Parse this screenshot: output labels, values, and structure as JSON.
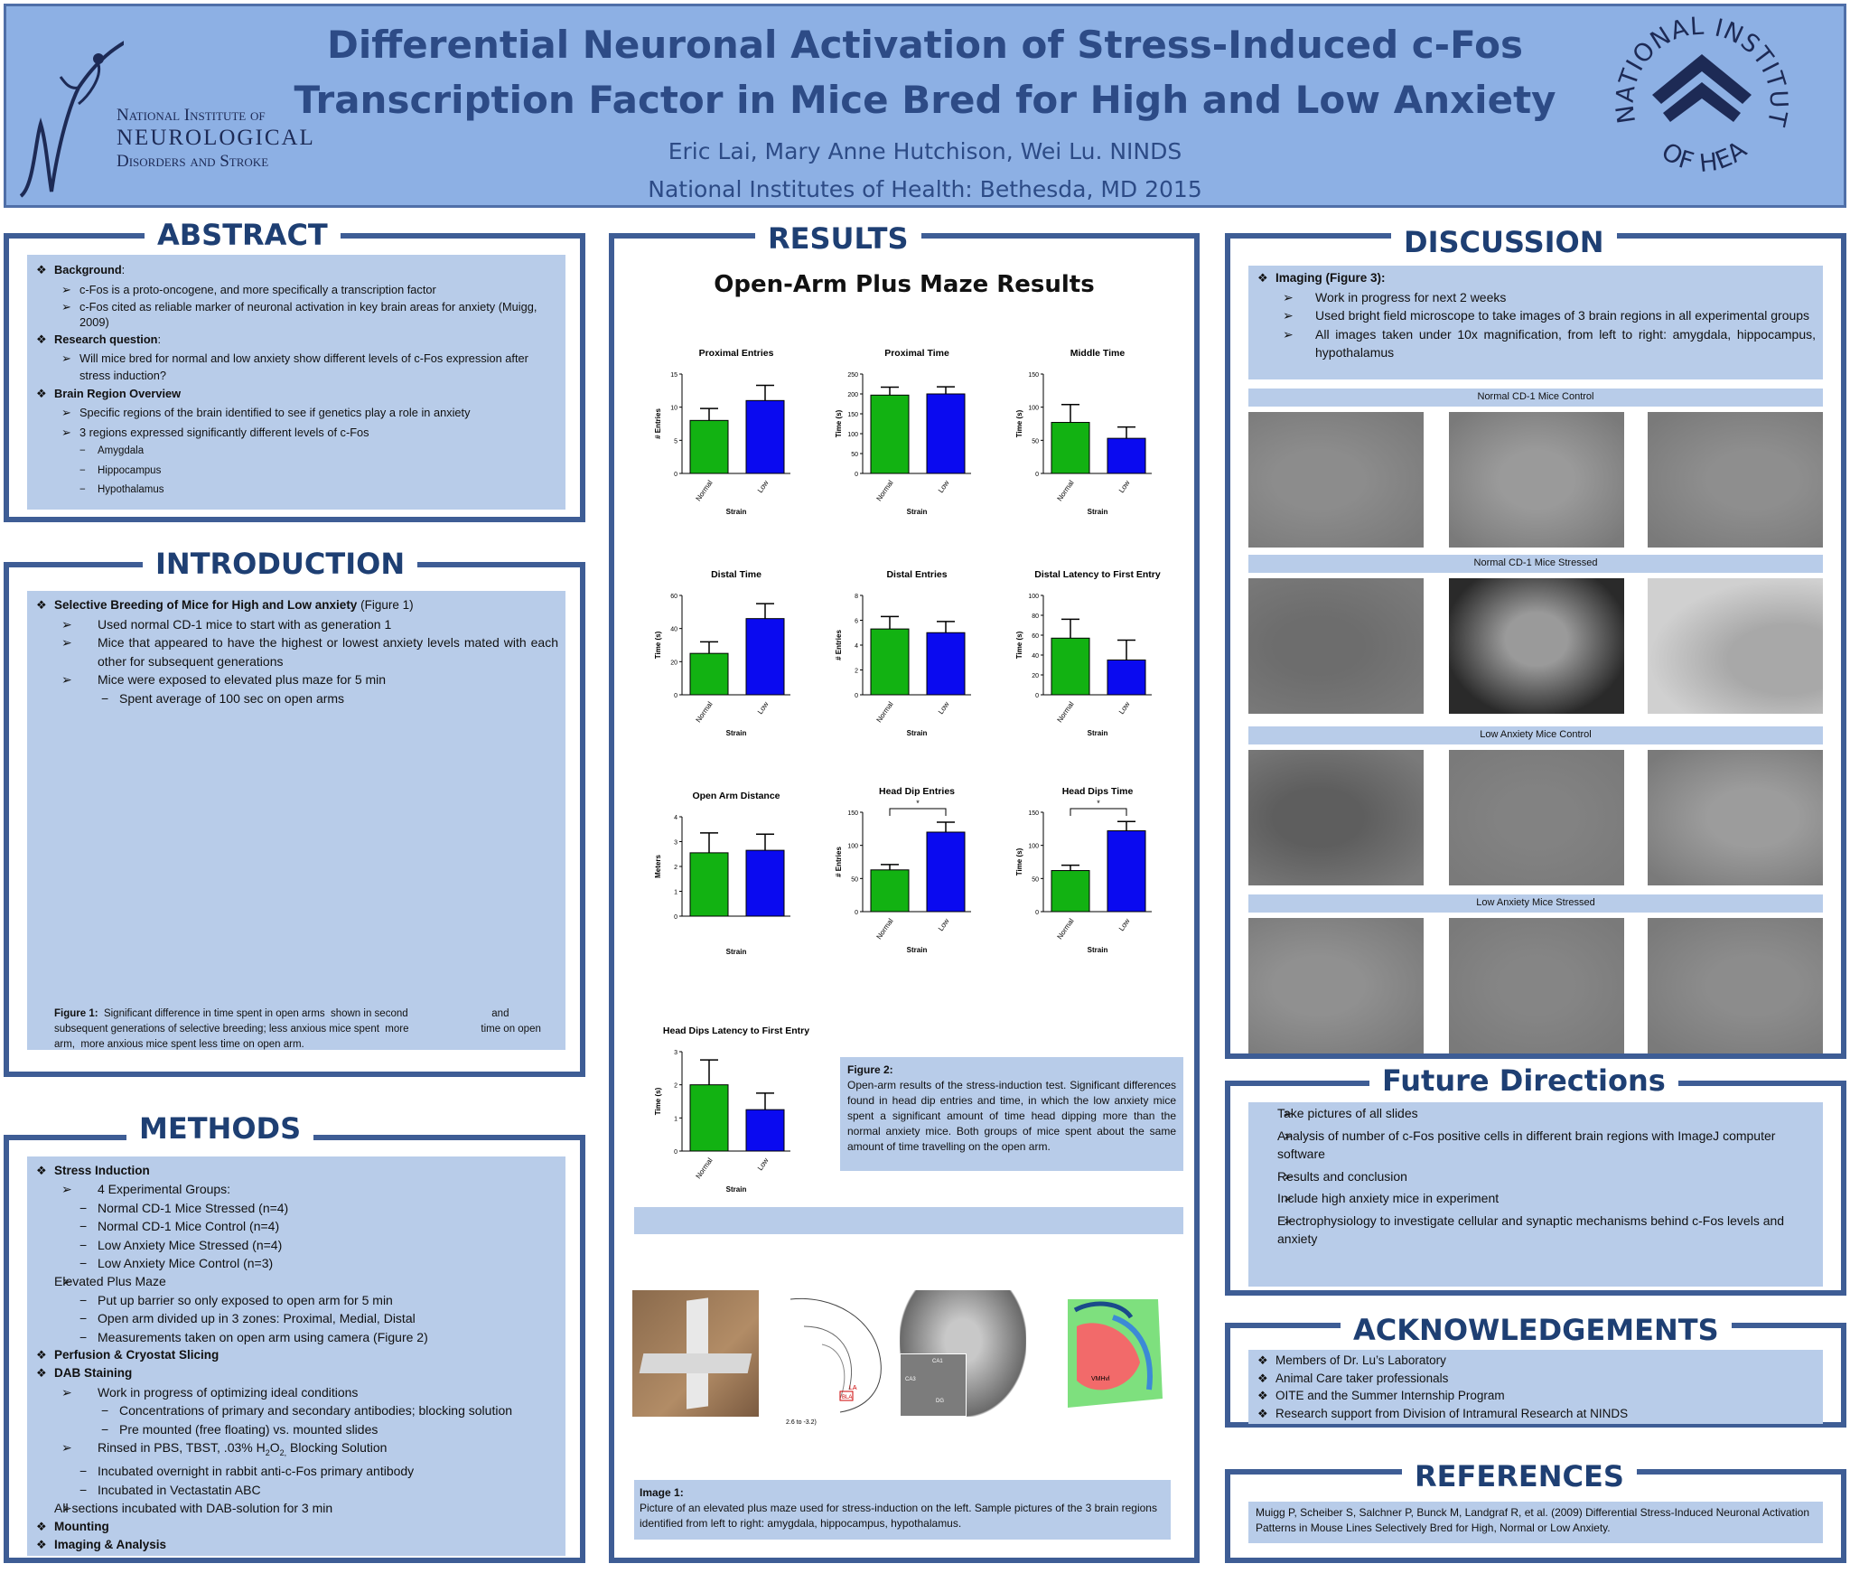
{
  "header": {
    "title_line1": "Differential Neuronal Activation of Stress-Induced c-Fos",
    "title_line2": "Transcription Factor in Mice Bred for High and Low Anxiety",
    "authors": "Eric Lai, Mary Anne Hutchison, Wei Lu. NINDS",
    "affiliation": "National Institutes of Health: Bethesda, MD 2015",
    "ninds_line1": "National Institute of",
    "ninds_line2": "NEUROLOGICAL",
    "ninds_line3": "Disorders and Stroke",
    "nih_seal_text": "NATIONAL INSTITUTES OF HEALTH"
  },
  "abstract": {
    "title": "ABSTRACT",
    "background_label": "Background",
    "bg_1": "c-Fos  is a proto-oncogene, and more specifically a transcription factor",
    "bg_2": "c-Fos cited as reliable marker of neuronal activation in key brain areas for anxiety (Muigg, 2009)",
    "rq_label": "Research question",
    "rq_1": "Will mice bred for normal and low anxiety show different levels of c-Fos expression after stress induction?",
    "br_label": "Brain Region Overview",
    "br_1": "Specific regions of the brain identified to see if genetics play a role in anxiety",
    "br_2": "3 regions expressed significantly different levels of c-Fos",
    "br_r1": "Amygdala",
    "br_r2": "Hippocampus",
    "br_r3": "Hypothalamus"
  },
  "introduction": {
    "title": "INTRODUCTION",
    "h1": "Selective Breeding of Mice for High and Low anxiety",
    "h1_ref": " (Figure 1)",
    "i1": "Used normal CD-1 mice to start with  as generation 1",
    "i2": "Mice that appeared to have the highest or lowest anxiety levels mated with each other for subsequent generations",
    "i3": "Mice were exposed to elevated plus maze for 5 min",
    "i4": "Spent average of 100 sec on open arms",
    "fig_label": "Figure 1:",
    "fig_text": "  Significant difference in time spent in open arms  shown in second                             and subsequent generations of selective breeding; less anxious mice spent  more                         time on open arm,  more anxious mice spent less time on open arm."
  },
  "methods": {
    "title": "METHODS",
    "m1": "Stress Induction",
    "m1a": "4 Experimental Groups:",
    "m1a1": "Normal CD-1 Mice Stressed (n=4)",
    "m1a2": "Normal CD-1 Mice Control (n=4)",
    "m1a3": "Low Anxiety Mice Stressed (n=4)",
    "m1a4": "Low Anxiety Mice Control (n=3)",
    "m2": "Elevated Plus Maze",
    "m2a": "Put up barrier so only exposed to open arm for 5 min",
    "m2b": "Open arm divided up in 3 zones: Proximal, Medial, Distal",
    "m2c": "Measurements taken on open arm using camera (Figure 2)",
    "m3": "Perfusion & Cryostat Slicing",
    "m4": "DAB Staining",
    "m4a": "Work in progress of optimizing ideal conditions",
    "m4a1": "Concentrations of primary and secondary antibodies; blocking solution",
    "m4a2": "Pre mounted (free floating) vs. mounted slides",
    "m4b_pre": "Rinsed in PBS, TBST, .03% H",
    "m4b_sub1": "2",
    "m4b_mid": "O",
    "m4b_sub2": "2,",
    "m4b_post": " Blocking Solution",
    "m4c": "Incubated overnight in rabbit anti-c-Fos primary antibody",
    "m4d": "Incubated in Vectastatin ABC",
    "m5": "All sections incubated with DAB-solution for 3 min",
    "m6": "Mounting",
    "m7": "Imaging & Analysis"
  },
  "results": {
    "title": "RESULTS",
    "subtitle": "Open-Arm Plus Maze Results",
    "fig2_label": "Figure 2:",
    "fig2_text": "Open-arm results of the stress-induction test. Significant differences found in head dip entries and time, in which the low anxiety mice spent a significant amount of time head dipping more than the normal anxiety mice. Both groups of mice spent about the same amount of time travelling on the open arm.",
    "image1_label": "Image 1:",
    "image1_text": "Picture of an elevated plus maze used for stress-induction on the left. Sample pictures of the 3 brain regions identified  from left to right: amygdala, hippocampus,  hypothalamus.",
    "atlas_range": "2.6 to -3.2)",
    "atlas_la": "LA",
    "atlas_bla": "BLA",
    "atlas_vmh": "VMHvl",
    "ca1": "CA1",
    "ca3": "CA3",
    "dg": "DG"
  },
  "chart_data": [
    {
      "type": "bar",
      "title": "Proximal Entries",
      "categories": [
        "Normal",
        "Low"
      ],
      "values": [
        8,
        11
      ],
      "errors": [
        1.8,
        2.3
      ],
      "xlabel": "Strain",
      "ylabel": "# Entries",
      "ylim": [
        0,
        15
      ],
      "yticks": [
        0,
        5,
        10,
        15
      ],
      "colors": [
        "#12b212",
        "#0a0af0"
      ]
    },
    {
      "type": "bar",
      "title": "Proximal Time",
      "categories": [
        "Normal",
        "Low"
      ],
      "values": [
        197,
        200
      ],
      "errors": [
        20,
        18
      ],
      "xlabel": "Strain",
      "ylabel": "Time (s)",
      "ylim": [
        0,
        250
      ],
      "yticks": [
        0,
        50,
        100,
        150,
        200,
        250
      ],
      "colors": [
        "#12b212",
        "#0a0af0"
      ]
    },
    {
      "type": "bar",
      "title": "Middle Time",
      "categories": [
        "Normal",
        "Low"
      ],
      "values": [
        77,
        53
      ],
      "errors": [
        27,
        17
      ],
      "xlabel": "Strain",
      "ylabel": "Time (s)",
      "ylim": [
        0,
        150
      ],
      "yticks": [
        0,
        50,
        100,
        150
      ],
      "colors": [
        "#12b212",
        "#0a0af0"
      ]
    },
    {
      "type": "bar",
      "title": "Distal Time",
      "categories": [
        "Normal",
        "Low"
      ],
      "values": [
        25,
        46
      ],
      "errors": [
        7,
        9
      ],
      "xlabel": "Strain",
      "ylabel": "Time (s)",
      "ylim": [
        0,
        60
      ],
      "yticks": [
        0,
        20,
        40,
        60
      ],
      "colors": [
        "#12b212",
        "#0a0af0"
      ]
    },
    {
      "type": "bar",
      "title": "Distal Entries",
      "categories": [
        "Normal",
        "Low"
      ],
      "values": [
        5.3,
        5
      ],
      "errors": [
        1,
        0.9
      ],
      "xlabel": "Strain",
      "ylabel": "# Entries",
      "ylim": [
        0,
        8
      ],
      "yticks": [
        0,
        2,
        4,
        6,
        8
      ],
      "colors": [
        "#12b212",
        "#0a0af0"
      ]
    },
    {
      "type": "bar",
      "title": "Distal Latency to First Entry",
      "categories": [
        "Normal",
        "Low"
      ],
      "values": [
        57,
        35
      ],
      "errors": [
        19,
        20
      ],
      "xlabel": "Strain",
      "ylabel": "Time (s)",
      "ylim": [
        0,
        100
      ],
      "yticks": [
        0,
        20,
        40,
        60,
        80,
        100
      ],
      "colors": [
        "#12b212",
        "#0a0af0"
      ]
    },
    {
      "type": "bar",
      "title": "Open Arm Distance",
      "categories": [
        "Normal",
        "Low"
      ],
      "values": [
        2.55,
        2.65
      ],
      "errors": [
        0.8,
        0.65
      ],
      "xlabel": "Strain",
      "ylabel": "Meters",
      "ylim": [
        0,
        4
      ],
      "yticks": [
        0,
        1,
        2,
        3,
        4
      ],
      "colors": [
        "#12b212",
        "#0a0af0"
      ],
      "no_xticks": true
    },
    {
      "type": "bar",
      "title": "Head Dip Entries",
      "categories": [
        "Normal",
        "Low"
      ],
      "values": [
        63,
        120
      ],
      "errors": [
        8,
        15
      ],
      "xlabel": "Strain",
      "ylabel": "# Entries",
      "ylim": [
        0,
        150
      ],
      "yticks": [
        0,
        50,
        100,
        150
      ],
      "colors": [
        "#12b212",
        "#0a0af0"
      ],
      "annotation": "*"
    },
    {
      "type": "bar",
      "title": "Head Dips Time",
      "categories": [
        "Normal",
        "Low"
      ],
      "values": [
        62,
        122
      ],
      "errors": [
        8,
        14
      ],
      "xlabel": "Strain",
      "ylabel": "Time (s)",
      "ylim": [
        0,
        150
      ],
      "yticks": [
        0,
        50,
        100,
        150
      ],
      "colors": [
        "#12b212",
        "#0a0af0"
      ],
      "annotation": "*"
    },
    {
      "type": "bar",
      "title": "Head Dips Latency to First Entry",
      "categories": [
        "Normal",
        "Low"
      ],
      "values": [
        2,
        1.25
      ],
      "errors": [
        0.75,
        0.5
      ],
      "xlabel": "Strain",
      "ylabel": "Time (s)",
      "ylim": [
        0,
        3
      ],
      "yticks": [
        0,
        1,
        2,
        3
      ],
      "colors": [
        "#12b212",
        "#0a0af0"
      ]
    }
  ],
  "discussion": {
    "title": "DISCUSSION",
    "h1": "Imaging (Figure 3):",
    "d1": "Work in progress for next 2 weeks",
    "d2": "Used bright field microscope to take images  of 3 brain regions in all experimental groups",
    "d3": "All images taken under 10x magnification, from left to right: amygdala, hippocampus, hypothalamus",
    "g1": "Normal CD-1 Mice Control",
    "g2": "Normal CD-1 Mice  Stressed",
    "g3": "Low Anxiety Mice Control",
    "g4": "Low Anxiety Mice  Stressed"
  },
  "future": {
    "title": "Future Directions",
    "f1": "Take pictures of all slides",
    "f2": "Analysis of number of c-Fos positive cells in different brain regions with ImageJ computer software",
    "f3": "Results and conclusion",
    "f4": "Include high anxiety mice in experiment",
    "f5": "Electrophysiology to investigate cellular and synaptic mechanisms behind  c-Fos levels and anxiety"
  },
  "ack": {
    "title": "ACKNOWLEDGEMENTS",
    "a1": "Members of Dr. Lu’s Laboratory",
    "a2": "Animal Care taker professionals",
    "a3": "OITE and the Summer Internship Program",
    "a4": "Research support from Division of Intramural Research at NINDS"
  },
  "refs": {
    "title": "REFERENCES",
    "r1": "Muigg P, Scheiber S, Salchner P, Bunck M, Landgraf R, et al. (2009) Differential Stress-Induced Neuronal Activation Patterns in Mouse Lines Selectively Bred for High, Normal or Low Anxiety."
  }
}
